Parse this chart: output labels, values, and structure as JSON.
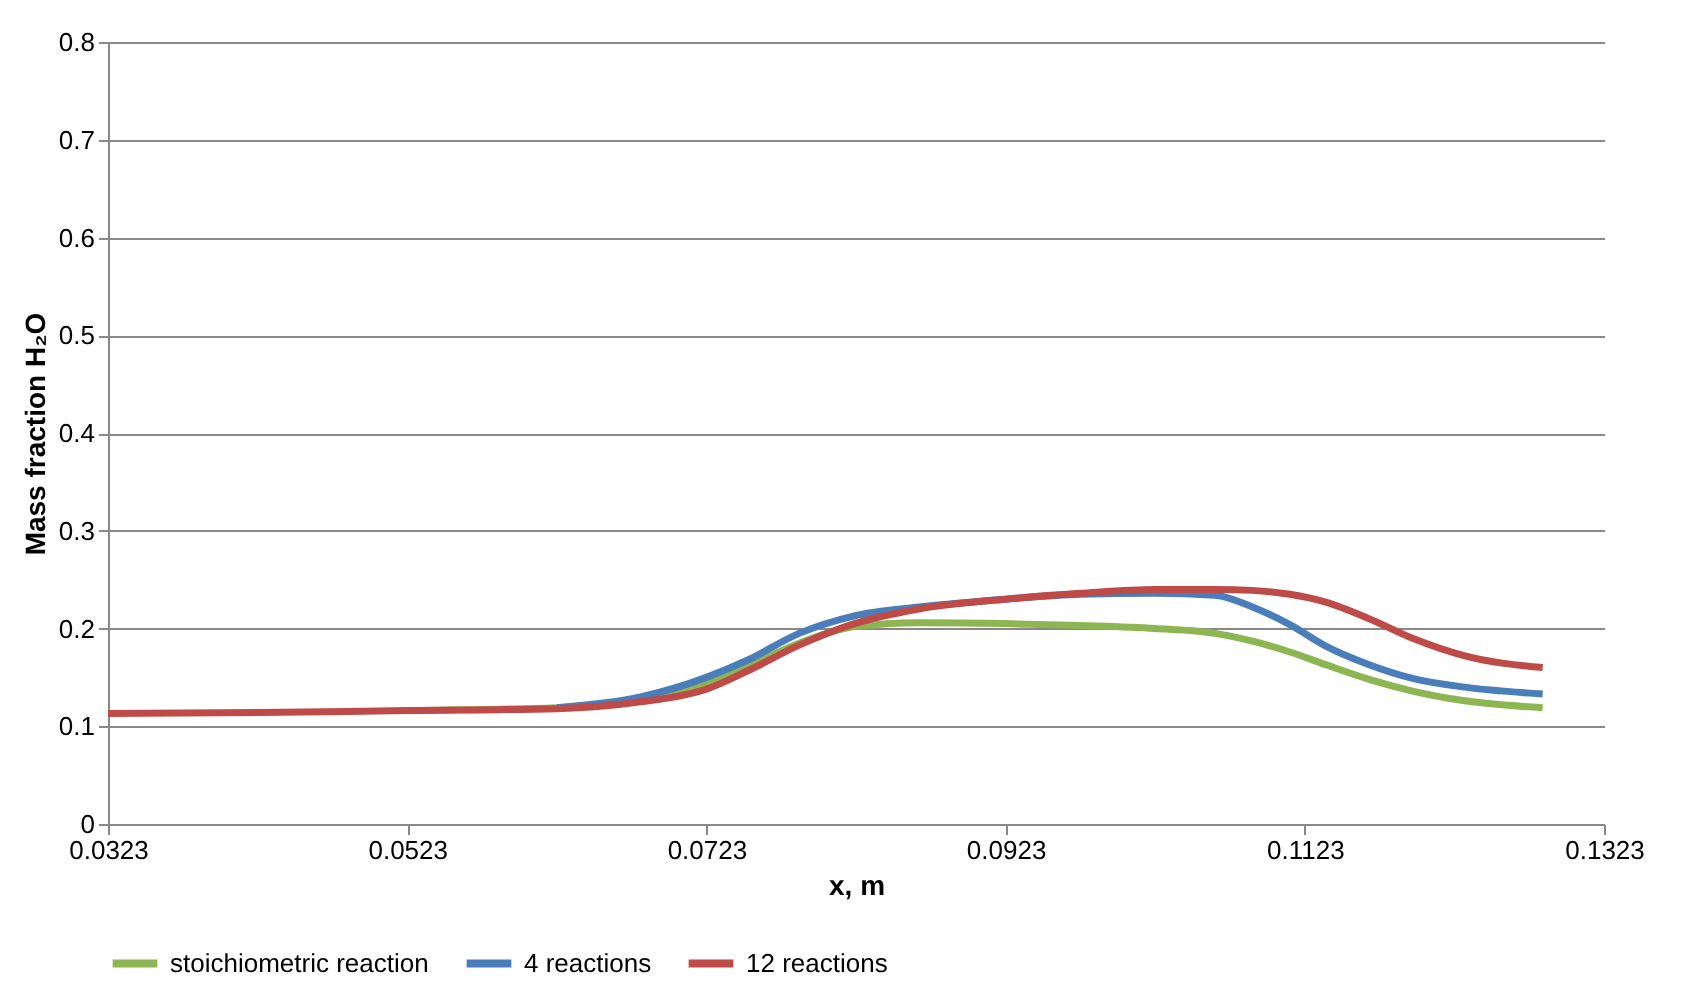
{
  "chart_data": {
    "type": "line",
    "xlabel": "x, m",
    "ylabel": "Mass fraction H₂O",
    "xlim": [
      0.0323,
      0.1323
    ],
    "xticks": [
      0.0323,
      0.0523,
      0.0723,
      0.0923,
      0.1123,
      0.1323
    ],
    "ylim": [
      0,
      0.8
    ],
    "yticks": [
      0,
      0.1,
      0.2,
      0.3,
      0.4,
      0.5,
      0.6,
      0.7,
      0.8
    ],
    "grid": "y",
    "legend": "bottom",
    "marker": "none",
    "line_style": "solid",
    "x": [
      0.0323,
      0.0423,
      0.0523,
      0.0623,
      0.0679,
      0.0723,
      0.0751,
      0.0785,
      0.0822,
      0.0865,
      0.0923,
      0.0973,
      0.1023,
      0.1063,
      0.1088,
      0.1113,
      0.1137,
      0.1166,
      0.1195,
      0.123,
      0.1282
    ],
    "series": [
      {
        "name": "stoichiometric reaction",
        "color": "#8db653",
        "values": [
          null,
          null,
          0.116,
          0.119,
          0.128,
          0.145,
          0.162,
          0.185,
          0.202,
          0.206,
          0.205,
          0.203,
          0.2,
          0.195,
          0.187,
          0.176,
          0.163,
          0.148,
          0.136,
          0.126,
          0.119
        ]
      },
      {
        "name": "4 reactions",
        "color": "#4a7ebb",
        "values": [
          null,
          null,
          null,
          0.119,
          0.13,
          0.15,
          0.168,
          0.195,
          0.213,
          0.222,
          0.23,
          0.235,
          0.236,
          0.234,
          0.222,
          0.204,
          0.182,
          0.163,
          0.149,
          0.14,
          0.133
        ]
      },
      {
        "name": "12 reactions",
        "color": "#be4b48",
        "values": [
          0.113,
          0.114,
          0.116,
          0.118,
          0.125,
          0.138,
          0.157,
          0.183,
          0.205,
          0.22,
          0.23,
          0.236,
          0.24,
          0.24,
          0.239,
          0.235,
          0.227,
          0.21,
          0.19,
          0.172,
          0.16
        ]
      }
    ]
  }
}
